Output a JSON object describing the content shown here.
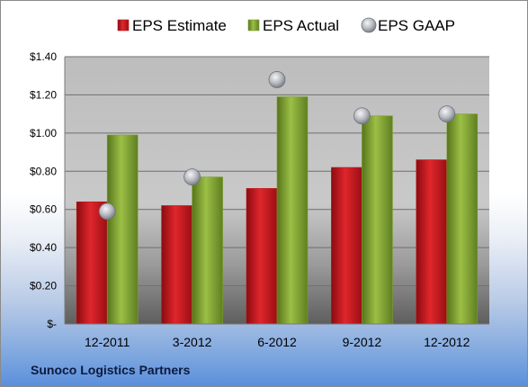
{
  "chart_data": {
    "type": "bar",
    "categories": [
      "12-2011",
      "3-2012",
      "6-2012",
      "9-2012",
      "12-2012"
    ],
    "series": [
      {
        "name": "EPS Estimate",
        "kind": "bar",
        "color": "#c0151b",
        "values": [
          0.64,
          0.62,
          0.71,
          0.82,
          0.86
        ]
      },
      {
        "name": "EPS Actual",
        "kind": "bar",
        "color": "#7ea02e",
        "values": [
          0.99,
          0.77,
          1.19,
          1.09,
          1.1
        ]
      },
      {
        "name": "EPS GAAP",
        "kind": "marker",
        "color": "#a9adb4",
        "values": [
          0.59,
          0.77,
          1.28,
          1.09,
          1.1
        ]
      }
    ],
    "ylim": [
      0,
      1.4
    ],
    "yticks": [
      0,
      0.2,
      0.4,
      0.6,
      0.8,
      1.0,
      1.2,
      1.4
    ],
    "ytick_labels": [
      "$-",
      "$0.20",
      "$0.40",
      "$0.60",
      "$0.80",
      "$1.00",
      "$1.20",
      "$1.40"
    ],
    "legend_position": "top",
    "grid": true
  },
  "footer": {
    "company": "Sunoco Logistics Partners"
  }
}
